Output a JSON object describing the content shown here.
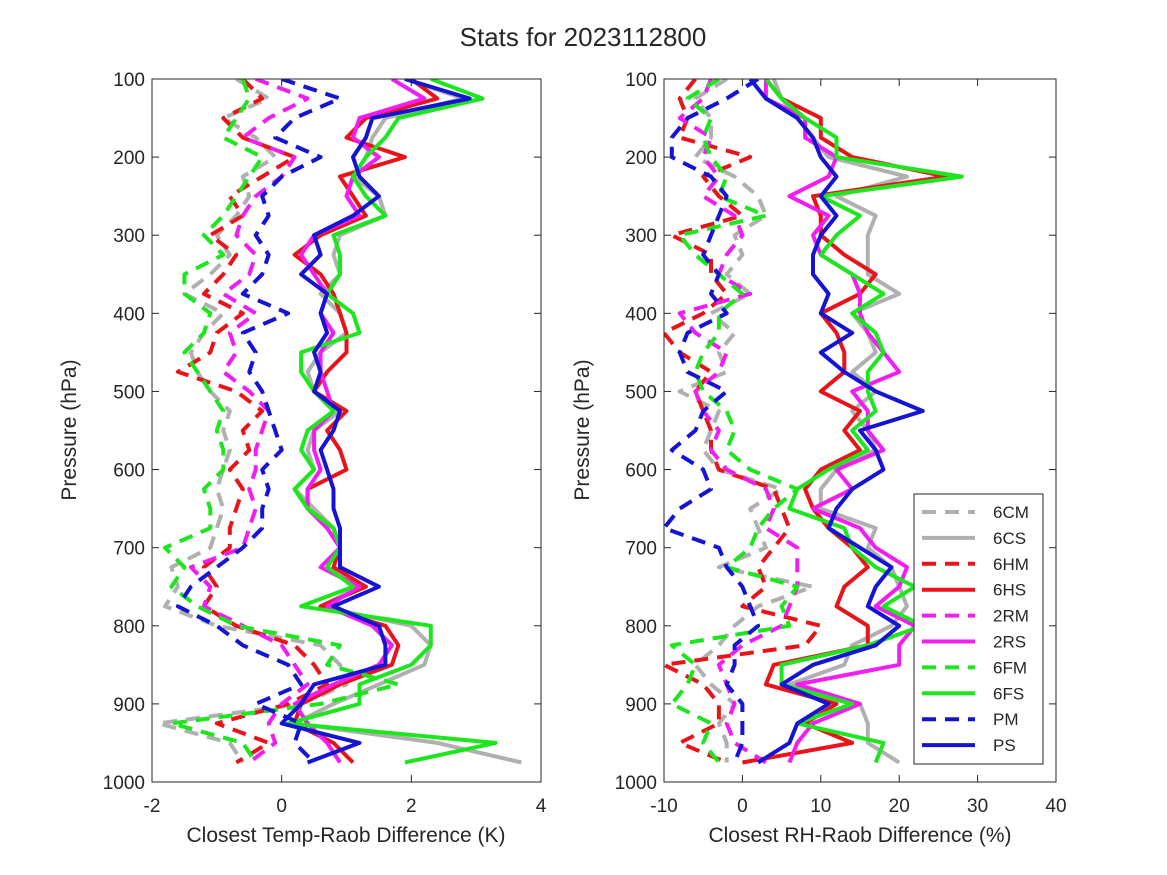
{
  "title": "Stats for 2023112800",
  "legend": {
    "placement": "lower-right of right panel",
    "entries": [
      {
        "label": "6CM",
        "color": "#b0b0b0",
        "style": "dashed"
      },
      {
        "label": "6CS",
        "color": "#b0b0b0",
        "style": "solid"
      },
      {
        "label": "6HM",
        "color": "#e8141a",
        "style": "dashed"
      },
      {
        "label": "6HS",
        "color": "#e8141a",
        "style": "solid"
      },
      {
        "label": "2RM",
        "color": "#f01ef0",
        "style": "dashed"
      },
      {
        "label": "2RS",
        "color": "#f01ef0",
        "style": "solid"
      },
      {
        "label": "6FM",
        "color": "#1ee61e",
        "style": "dashed"
      },
      {
        "label": "6FS",
        "color": "#1ee61e",
        "style": "solid"
      },
      {
        "label": "PM",
        "color": "#1414d2",
        "style": "dashed"
      },
      {
        "label": "PS",
        "color": "#1414d2",
        "style": "solid"
      }
    ]
  },
  "chart_data": [
    {
      "type": "line",
      "xlabel": "Closest Temp-Raob Difference (K)",
      "ylabel": "Pressure (hPa)",
      "xlim": [
        -2,
        4
      ],
      "ylim": [
        100,
        1000
      ],
      "y_reversed": true,
      "xticks": [
        "-2",
        "0",
        "2",
        "4"
      ],
      "yticks": [
        "100",
        "200",
        "300",
        "400",
        "500",
        "600",
        "700",
        "800",
        "900",
        "1000"
      ],
      "grid": false,
      "pressure": [
        100,
        125,
        150,
        175,
        200,
        225,
        250,
        275,
        300,
        325,
        350,
        375,
        400,
        425,
        450,
        475,
        500,
        525,
        550,
        575,
        600,
        625,
        650,
        675,
        700,
        725,
        750,
        775,
        800,
        825,
        850,
        875,
        900,
        925,
        950,
        975
      ],
      "series": [
        {
          "name": "6CM",
          "values": [
            -0.7,
            -0.2,
            -0.9,
            -0.4,
            -0.1,
            -0.6,
            -0.5,
            -0.7,
            -1.0,
            -0.8,
            -1.1,
            -1.5,
            -0.9,
            -1.2,
            -1.4,
            -1.3,
            -1.1,
            -0.8,
            -0.9,
            -0.8,
            -0.9,
            -1.0,
            -0.9,
            -1.0,
            -1.1,
            -1.7,
            -1.6,
            -1.8,
            -1.0,
            0.6,
            0.9,
            1.0,
            0.3,
            -1.9,
            -0.8,
            -0.6
          ]
        },
        {
          "name": "6CS",
          "values": [
            1.9,
            2.8,
            1.6,
            1.4,
            1.3,
            1.1,
            1.5,
            1.6,
            0.9,
            0.8,
            0.9,
            0.6,
            0.9,
            1.0,
            0.6,
            0.4,
            0.5,
            0.9,
            0.5,
            0.4,
            0.5,
            0.2,
            0.5,
            0.8,
            0.9,
            0.7,
            1.2,
            0.6,
            2.0,
            2.3,
            2.2,
            1.5,
            0.8,
            0.2,
            2.4,
            3.7
          ]
        },
        {
          "name": "6HM",
          "values": [
            -0.6,
            -0.3,
            -0.9,
            -0.6,
            0.2,
            -0.3,
            -0.8,
            -0.6,
            -1.1,
            -0.7,
            -0.9,
            -1.2,
            -0.6,
            -1.0,
            -1.1,
            -1.6,
            -0.7,
            -0.3,
            -0.6,
            -0.5,
            -0.8,
            -0.6,
            -0.7,
            -0.8,
            -0.8,
            -1.2,
            -1.0,
            -1.2,
            -0.7,
            0.2,
            0.5,
            0.7,
            0.1,
            -1.0,
            -0.2,
            -0.7
          ]
        },
        {
          "name": "6HS",
          "values": [
            2.0,
            2.4,
            1.3,
            1.0,
            1.9,
            0.9,
            1.1,
            1.3,
            0.6,
            0.2,
            0.6,
            0.8,
            0.9,
            1.0,
            1.0,
            0.7,
            0.5,
            1.0,
            0.7,
            0.9,
            1.0,
            0.4,
            0.4,
            0.8,
            0.9,
            0.8,
            1.3,
            0.6,
            1.6,
            1.8,
            1.7,
            0.9,
            0.3,
            0.2,
            0.8,
            1.1
          ]
        },
        {
          "name": "2RM",
          "values": [
            -0.4,
            0.4,
            -0.2,
            -0.6,
            0.2,
            0.0,
            -0.4,
            -0.6,
            -0.7,
            -0.4,
            -0.5,
            -0.9,
            -0.4,
            -0.8,
            -0.7,
            -0.9,
            -0.5,
            -0.2,
            -0.3,
            -0.4,
            -0.4,
            -0.5,
            -0.4,
            -0.5,
            -0.6,
            -1.4,
            -1.1,
            -1.2,
            -0.6,
            0.0,
            0.2,
            0.4,
            0.0,
            -0.2,
            -0.1,
            -0.5
          ]
        },
        {
          "name": "2RS",
          "values": [
            1.7,
            2.2,
            1.2,
            1.1,
            1.5,
            1.1,
            1.0,
            1.2,
            0.5,
            0.3,
            0.5,
            0.7,
            0.6,
            0.8,
            0.6,
            0.6,
            0.7,
            0.8,
            0.5,
            0.5,
            0.6,
            0.4,
            0.4,
            0.7,
            0.9,
            0.6,
            1.2,
            0.7,
            1.4,
            1.7,
            1.5,
            0.8,
            0.2,
            0.4,
            0.7,
            0.9
          ]
        },
        {
          "name": "6FM",
          "values": [
            -0.6,
            -0.5,
            -0.7,
            -0.9,
            -0.3,
            -0.5,
            -0.7,
            -0.9,
            -1.2,
            -0.9,
            -1.5,
            -1.5,
            -1.1,
            -1.2,
            -1.5,
            -1.3,
            -1.1,
            -0.9,
            -1.0,
            -0.9,
            -0.9,
            -1.2,
            -1.1,
            -1.1,
            -1.8,
            -1.5,
            -1.7,
            -1.3,
            -0.7,
            0.9,
            0.7,
            1.8,
            0.6,
            -1.7,
            -0.6,
            -0.4
          ]
        },
        {
          "name": "6FS",
          "values": [
            2.3,
            3.1,
            1.8,
            1.6,
            1.3,
            1.1,
            1.3,
            1.6,
            0.8,
            0.9,
            0.9,
            0.7,
            1.1,
            1.2,
            0.3,
            0.3,
            0.5,
            0.8,
            0.4,
            0.3,
            0.5,
            0.2,
            0.4,
            0.8,
            0.9,
            0.7,
            1.1,
            0.3,
            2.3,
            2.3,
            2.0,
            1.2,
            1.2,
            0.1,
            3.3,
            1.9
          ]
        },
        {
          "name": "PM",
          "values": [
            0.0,
            0.9,
            0.2,
            -0.1,
            0.6,
            0.0,
            -0.3,
            -0.2,
            -0.4,
            -0.2,
            -0.3,
            -0.6,
            0.1,
            -0.6,
            -0.4,
            -0.5,
            -0.3,
            -0.2,
            -0.1,
            0.0,
            -0.3,
            -0.2,
            -0.3,
            -0.3,
            -0.6,
            -1.0,
            -1.4,
            -1.6,
            -1.0,
            -0.6,
            0.1,
            0.3,
            -0.4,
            0.3,
            0.2,
            0.5
          ]
        },
        {
          "name": "PS",
          "values": [
            1.9,
            2.9,
            1.4,
            1.3,
            1.1,
            1.2,
            1.5,
            1.1,
            0.5,
            0.6,
            0.3,
            0.7,
            0.6,
            0.7,
            0.5,
            0.6,
            0.5,
            0.9,
            0.8,
            0.6,
            0.7,
            0.8,
            0.8,
            0.9,
            0.9,
            0.9,
            1.5,
            0.8,
            1.5,
            1.6,
            1.6,
            0.5,
            0.3,
            0.0,
            1.2,
            0.4
          ]
        }
      ]
    },
    {
      "type": "line",
      "xlabel": "Closest RH-Raob Difference (%)",
      "ylabel": "Pressure (hPa)",
      "xlim": [
        -10,
        40
      ],
      "ylim": [
        100,
        1000
      ],
      "y_reversed": true,
      "xticks": [
        "-10",
        "0",
        "10",
        "20",
        "30",
        "40"
      ],
      "yticks": [
        "100",
        "200",
        "300",
        "400",
        "500",
        "600",
        "700",
        "800",
        "900",
        "1000"
      ],
      "grid": false,
      "pressure": [
        100,
        125,
        150,
        175,
        200,
        225,
        250,
        275,
        300,
        325,
        350,
        375,
        400,
        425,
        450,
        475,
        500,
        525,
        550,
        575,
        600,
        625,
        650,
        675,
        700,
        725,
        750,
        775,
        800,
        825,
        850,
        875,
        900,
        925,
        950,
        975
      ],
      "series": [
        {
          "name": "6CM",
          "values": [
            -2,
            -6,
            -4,
            -4,
            -6,
            -1,
            2,
            3,
            -1,
            0,
            -2,
            1,
            -4,
            -1,
            -3,
            -2,
            -8,
            -3,
            -4,
            -5,
            -3,
            5,
            1,
            2,
            3,
            -3,
            9,
            2,
            -1,
            -3,
            -6,
            -4,
            -1,
            -3,
            -2,
            -2
          ]
        },
        {
          "name": "6CS",
          "values": [
            4,
            5,
            7,
            9,
            11,
            21,
            12,
            17,
            16,
            16,
            16,
            20,
            14,
            16,
            17,
            14,
            17,
            14,
            16,
            17,
            12,
            10,
            10,
            17,
            16,
            19,
            20,
            21,
            19,
            14,
            13,
            6,
            15,
            16,
            16,
            20
          ]
        },
        {
          "name": "6HM",
          "values": [
            -6,
            -8,
            -7,
            -8,
            1,
            -5,
            -3,
            0,
            -9,
            -4,
            -4,
            -2,
            -5,
            -10,
            -8,
            -4,
            -6,
            -5,
            -4,
            -4,
            -3,
            4,
            5,
            6,
            4,
            2,
            3,
            0,
            10,
            8,
            -10,
            -5,
            -3,
            -3,
            -8,
            -2
          ]
        },
        {
          "name": "6HS",
          "values": [
            3,
            5,
            10,
            10,
            14,
            26,
            9,
            10,
            10,
            13,
            17,
            15,
            10,
            12,
            13,
            13,
            10,
            15,
            13,
            15,
            10,
            8,
            9,
            11,
            14,
            16,
            13,
            12,
            16,
            16,
            4,
            3,
            12,
            8,
            14,
            0
          ]
        },
        {
          "name": "2RM",
          "values": [
            -4,
            -5,
            -8,
            -4,
            -5,
            -3,
            -5,
            -1,
            0,
            -2,
            -3,
            1,
            -8,
            -6,
            -2,
            -3,
            -6,
            -5,
            -3,
            -4,
            -2,
            3,
            4,
            3,
            7,
            7,
            7,
            6,
            5,
            0,
            -3,
            -2,
            -1,
            -2,
            -1,
            3
          ]
        },
        {
          "name": "2RS",
          "values": [
            3,
            3,
            8,
            8,
            12,
            11,
            6,
            11,
            9,
            10,
            14,
            15,
            15,
            16,
            18,
            20,
            14,
            16,
            16,
            18,
            12,
            14,
            9,
            15,
            17,
            21,
            20,
            17,
            22,
            20,
            20,
            7,
            15,
            9,
            7,
            6
          ]
        },
        {
          "name": "6FM",
          "values": [
            -3,
            -7,
            -4,
            -5,
            -4,
            -2,
            -3,
            3,
            -8,
            -6,
            -3,
            0,
            -3,
            -3,
            -5,
            -6,
            -5,
            -2,
            -1,
            -2,
            1,
            7,
            4,
            2,
            1,
            -2,
            7,
            5,
            6,
            -9,
            -6,
            -7,
            -9,
            -4,
            -5,
            -3
          ]
        },
        {
          "name": "6FS",
          "values": [
            3,
            5,
            8,
            12,
            12,
            28,
            10,
            15,
            12,
            10,
            14,
            18,
            14,
            17,
            18,
            16,
            16,
            17,
            14,
            16,
            11,
            7,
            6,
            13,
            14,
            17,
            22,
            18,
            23,
            16,
            5,
            5,
            14,
            7,
            18,
            17
          ]
        },
        {
          "name": "PM",
          "values": [
            2,
            -2,
            -7,
            -9,
            -9,
            -4,
            -2,
            -3,
            -4,
            -5,
            -3,
            -4,
            -2,
            -7,
            -8,
            -7,
            -2,
            -5,
            -6,
            -9,
            -5,
            -4,
            -8,
            -10,
            -3,
            -2,
            0,
            1,
            2,
            -1,
            -1,
            -2,
            0,
            0,
            0,
            -1
          ]
        },
        {
          "name": "PS",
          "values": [
            1,
            3,
            7,
            9,
            10,
            12,
            10,
            12,
            10,
            9,
            9,
            11,
            10,
            14,
            10,
            13,
            17,
            23,
            15,
            17,
            18,
            14,
            12,
            11,
            15,
            19,
            17,
            16,
            20,
            17,
            9,
            5,
            11,
            7,
            6,
            2
          ]
        }
      ]
    }
  ]
}
